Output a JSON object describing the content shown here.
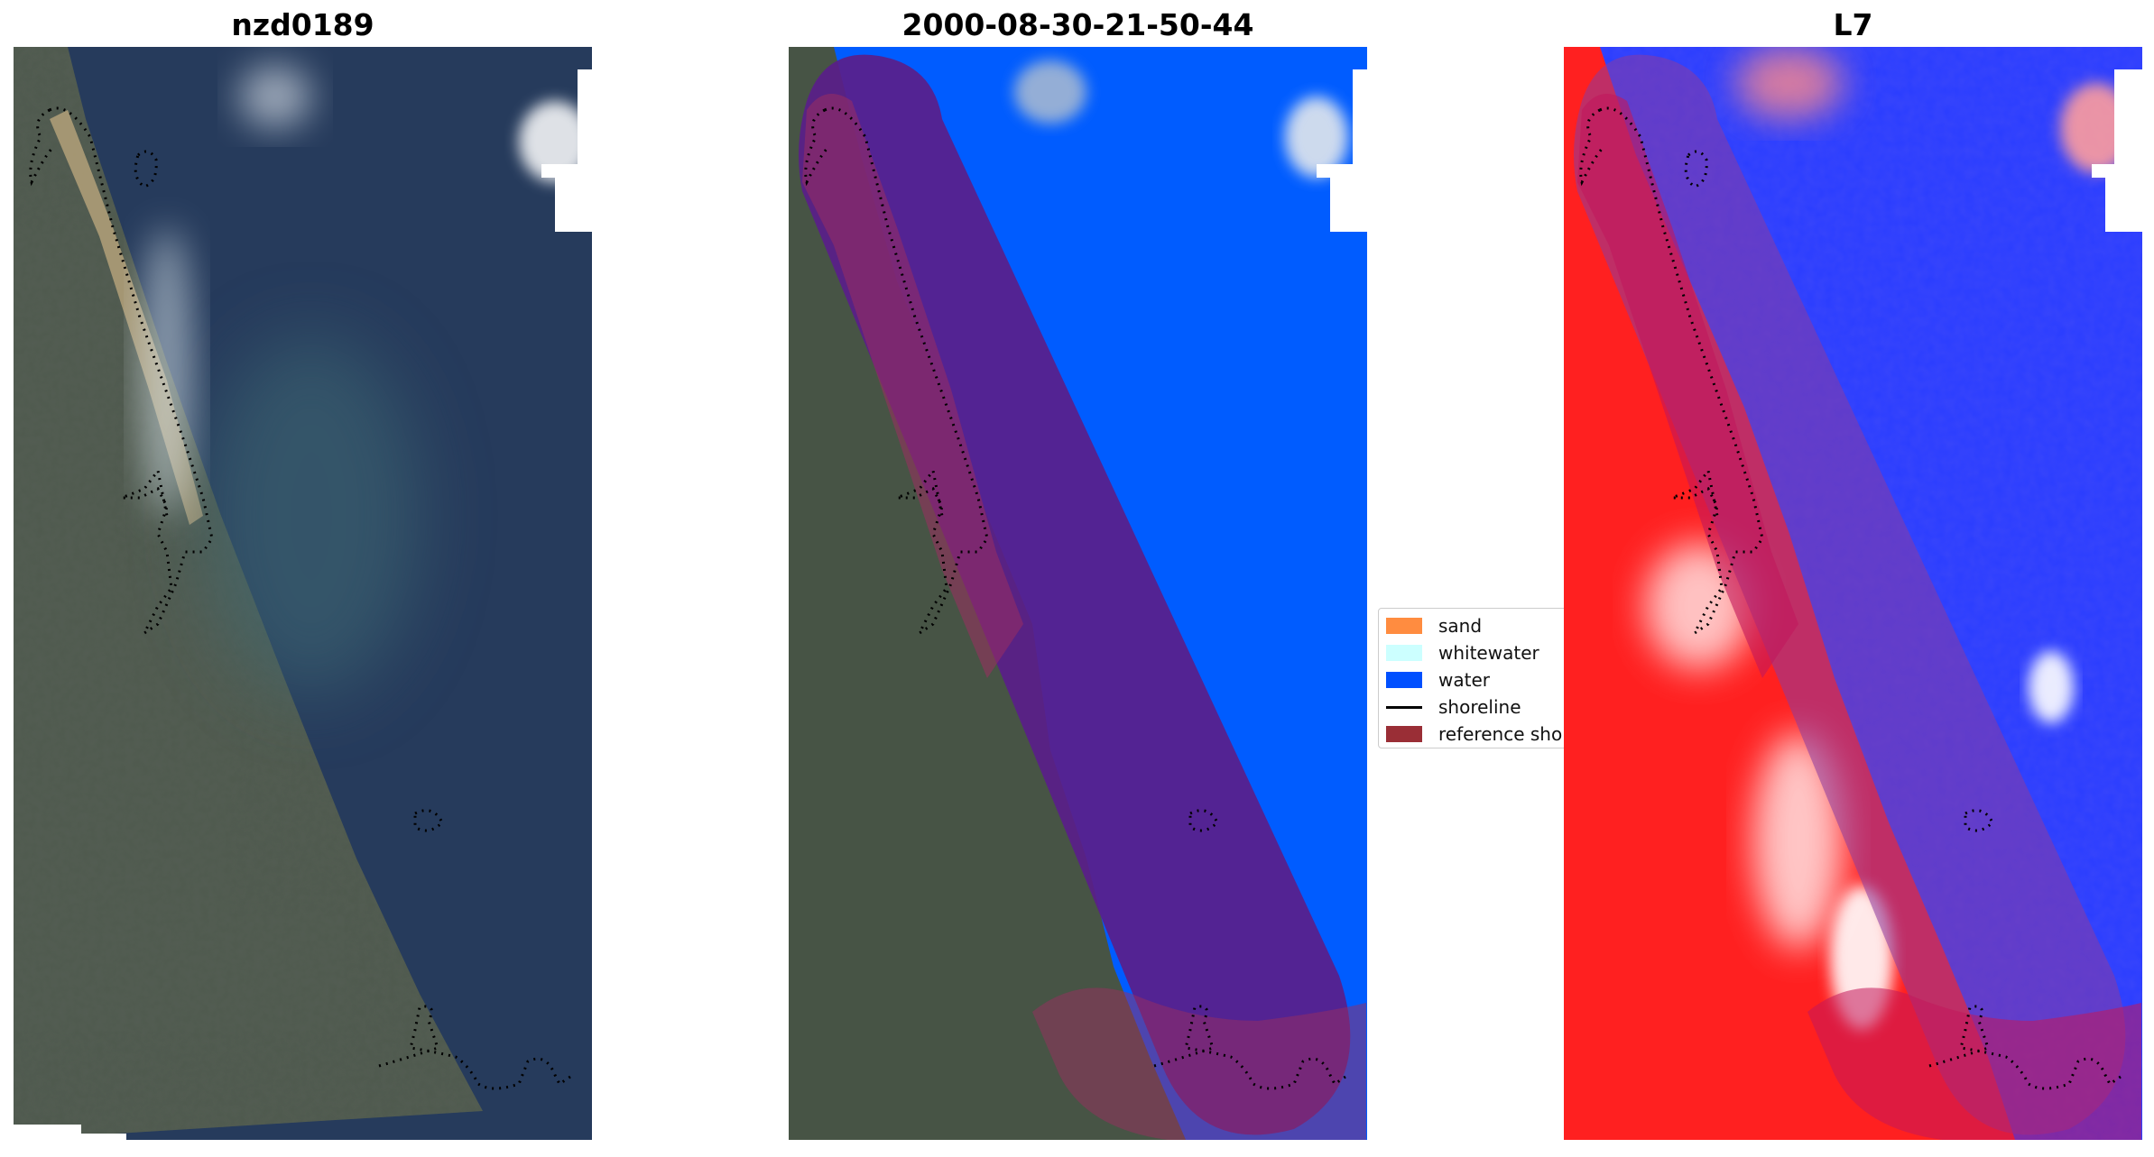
{
  "panels": [
    {
      "title": "nzd0189"
    },
    {
      "title": "2000-08-30-21-50-44"
    },
    {
      "title": "L7"
    }
  ],
  "legend": {
    "items": [
      {
        "label": "sand",
        "color": "#ff8c40",
        "kind": "patch"
      },
      {
        "label": "whitewater",
        "color": "#ccffff",
        "kind": "patch"
      },
      {
        "label": "water",
        "color": "#0050ff",
        "kind": "patch"
      },
      {
        "label": "shoreline",
        "color": "#000000",
        "kind": "line"
      },
      {
        "label": "reference shoreline",
        "color": "#9a2e36",
        "kind": "patch"
      }
    ]
  },
  "colors": {
    "land": "#4f5a4e",
    "sea": "#263b5c",
    "water_class": "#005cff",
    "buffer": "#5a1e8a",
    "ndwi_land": "#ff2020",
    "ndwi_water": "#2a3dff"
  }
}
